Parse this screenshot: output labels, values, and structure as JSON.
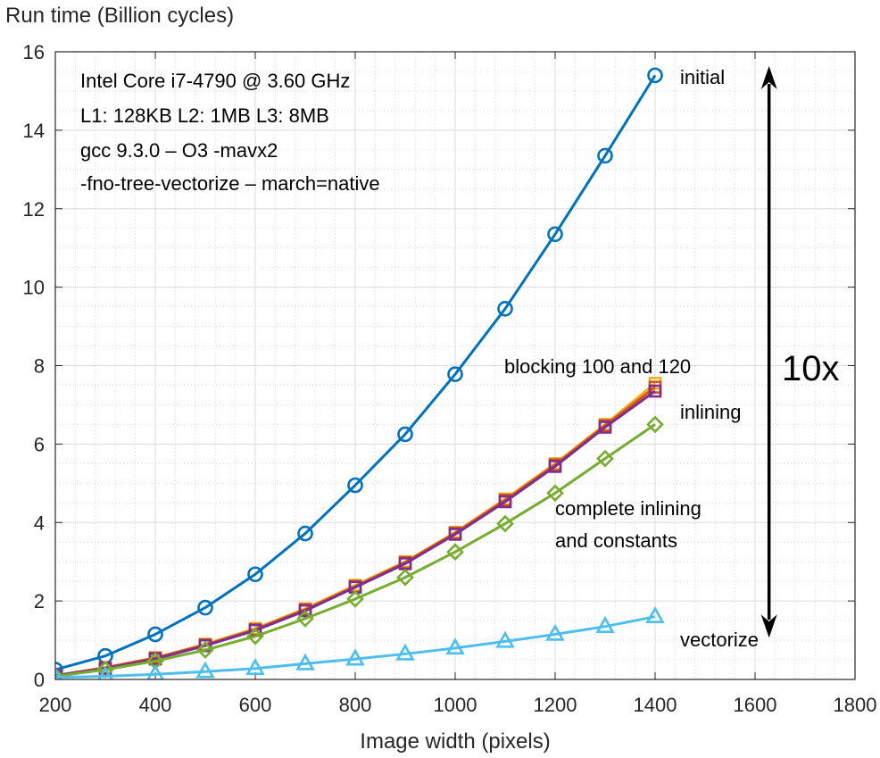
{
  "chart_data": {
    "type": "line",
    "xlabel": "Image width (pixels)",
    "ylabel": "Run time (Billion cycles)",
    "xlim": [
      200,
      1800
    ],
    "ylim": [
      0,
      16
    ],
    "x_ticks": [
      200,
      400,
      600,
      800,
      1000,
      1200,
      1400,
      1600,
      1800
    ],
    "y_ticks": [
      0,
      2,
      4,
      6,
      8,
      10,
      12,
      14,
      16
    ],
    "x_tick_labels": [
      "200",
      "400",
      "600",
      "800",
      "1000",
      "1200",
      "1400",
      "1600",
      "1800"
    ],
    "y_tick_labels": [
      "0",
      "2",
      "4",
      "6",
      "8",
      "10",
      "12",
      "14",
      "16"
    ],
    "grid": true,
    "minor_grid": true,
    "x": [
      200,
      300,
      400,
      500,
      600,
      700,
      800,
      900,
      1000,
      1100,
      1200,
      1300,
      1400
    ],
    "series": [
      {
        "key": "initial",
        "color": "#0072BD",
        "marker": "circle",
        "values": [
          0.25,
          0.6,
          1.15,
          1.83,
          2.68,
          3.72,
          4.95,
          6.25,
          7.78,
          9.45,
          11.35,
          13.35,
          15.4
        ]
      },
      {
        "key": "blocking-100",
        "color": "#EDB120",
        "marker": "square",
        "values": [
          0.1,
          0.3,
          0.55,
          0.9,
          1.3,
          1.8,
          2.4,
          3.0,
          3.75,
          4.6,
          5.5,
          6.5,
          7.55
        ]
      },
      {
        "key": "blocking-120",
        "color": "#D95319",
        "marker": "square",
        "values": [
          0.1,
          0.3,
          0.55,
          0.88,
          1.27,
          1.78,
          2.37,
          2.98,
          3.73,
          4.57,
          5.47,
          6.47,
          7.45
        ]
      },
      {
        "key": "inlining",
        "color": "#7E2F8E",
        "marker": "square",
        "values": [
          0.1,
          0.28,
          0.52,
          0.86,
          1.25,
          1.75,
          2.35,
          2.95,
          3.7,
          4.53,
          5.43,
          6.43,
          7.35
        ]
      },
      {
        "key": "complete-inlining",
        "color": "#77AC30",
        "marker": "diamond",
        "values": [
          0.08,
          0.25,
          0.47,
          0.75,
          1.1,
          1.55,
          2.05,
          2.6,
          3.25,
          3.97,
          4.75,
          5.63,
          6.5
        ]
      },
      {
        "key": "vectorize",
        "color": "#4DBEEE",
        "marker": "triangle",
        "values": [
          0.05,
          0.08,
          0.13,
          0.2,
          0.28,
          0.4,
          0.52,
          0.65,
          0.8,
          0.97,
          1.15,
          1.35,
          1.6
        ]
      }
    ],
    "annotations": {
      "specs": [
        "Intel Core i7-4790 @ 3.60 GHz",
        "L1: 128KB  L2: 1MB L3: 8MB",
        "gcc 9.3.0  – O3 -mavx2",
        "-fno-tree-vectorize  – march=native"
      ],
      "initial": "initial",
      "blocking": "blocking 100 and 120",
      "inlining": "inlining",
      "complete_line1": "complete inlining",
      "complete_line2": "and constants",
      "vectorize": "vectorize",
      "speedup": "10x",
      "speedup_arrow_x": 1628,
      "speedup_arrow_from": 15.5,
      "speedup_arrow_to": 1.2
    }
  }
}
